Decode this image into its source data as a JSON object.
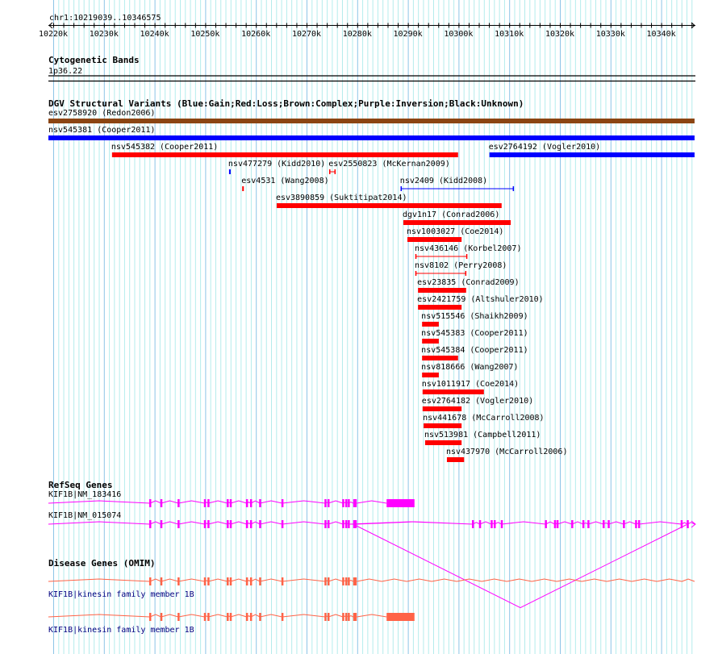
{
  "ruler": {
    "location": "chr1:10219039..10346575",
    "start_kb": 10219.039,
    "end_kb": 10346.575,
    "ticks": [
      "10220k",
      "10230k",
      "10240k",
      "10250k",
      "10260k",
      "10270k",
      "10280k",
      "10290k",
      "10300k",
      "10310k",
      "10320k",
      "10330k",
      "10340k"
    ]
  },
  "cytobands": {
    "title": "Cytogenetic Bands",
    "band": "1p36.22"
  },
  "dgv": {
    "title": "DGV Structural Variants (Blue:Gain;Red:Loss;Brown:Complex;Purple:Inversion;Black:Unknown)",
    "colors": {
      "Gain": "#0000ff",
      "Loss": "#ff0000",
      "Complex": "#8b4513",
      "Inversion": "#800080",
      "Unknown": "#000000"
    },
    "rows": [
      [
        {
          "label": "esv2758920 (Redon2006)",
          "type": "Complex",
          "style": "bar",
          "start": 10219.04,
          "end": 10346.58
        }
      ],
      [
        {
          "label": "nsv545381 (Cooper2011)",
          "type": "Gain",
          "style": "bar",
          "start": 10219.04,
          "end": 10346.58
        }
      ],
      [
        {
          "label": "nsv545382 (Cooper2011)",
          "type": "Loss",
          "style": "bar",
          "start": 10231.6,
          "end": 10299.9
        },
        {
          "label": "esv2764192 (Vogler2010)",
          "type": "Gain",
          "style": "bar",
          "start": 10306.1,
          "end": 10346.58
        }
      ],
      [
        {
          "label": "nsv477279 (Kidd2010)",
          "type": "Gain",
          "style": "bar",
          "start": 10254.7,
          "end": 10255.0
        },
        {
          "label": "esv2550823 (McKernan2009)",
          "type": "Loss",
          "style": "interval",
          "start": 10274.5,
          "end": 10275.7
        }
      ],
      [
        {
          "label": "esv4531 (Wang2008)",
          "type": "Loss",
          "style": "bar",
          "start": 10257.3,
          "end": 10257.6
        },
        {
          "label": "nsv2409 (Kidd2008)",
          "type": "Gain",
          "style": "interval",
          "start": 10288.6,
          "end": 10310.9
        }
      ],
      [
        {
          "label": "esv3890859 (Suktitipat2014)",
          "type": "Loss",
          "style": "bar",
          "start": 10264.1,
          "end": 10308.5
        }
      ],
      [
        {
          "label": "dgv1n17 (Conrad2006)",
          "type": "Loss",
          "style": "bar",
          "start": 10289.1,
          "end": 10310.3
        }
      ],
      [
        {
          "label": "nsv1003027 (Coe2014)",
          "type": "Loss",
          "style": "bar",
          "start": 10289.9,
          "end": 10300.6
        }
      ],
      [
        {
          "label": "nsv436146 (Korbel2007)",
          "type": "Loss",
          "style": "interval",
          "start": 10291.5,
          "end": 10301.7
        }
      ],
      [
        {
          "label": "nsv8102 (Perry2008)",
          "type": "Loss",
          "style": "interval",
          "start": 10291.5,
          "end": 10301.5
        }
      ],
      [
        {
          "label": "esv23835 (Conrad2009)",
          "type": "Loss",
          "style": "bar",
          "start": 10292.0,
          "end": 10301.5
        }
      ],
      [
        {
          "label": "esv2421759 (Altshuler2010)",
          "type": "Loss",
          "style": "bar",
          "start": 10292.0,
          "end": 10300.6
        }
      ],
      [
        {
          "label": "nsv515546 (Shaikh2009)",
          "type": "Loss",
          "style": "bar",
          "start": 10292.8,
          "end": 10296.1
        }
      ],
      [
        {
          "label": "nsv545383 (Cooper2011)",
          "type": "Loss",
          "style": "bar",
          "start": 10292.8,
          "end": 10296.1
        }
      ],
      [
        {
          "label": "nsv545384 (Cooper2011)",
          "type": "Loss",
          "style": "bar",
          "start": 10292.8,
          "end": 10299.9
        }
      ],
      [
        {
          "label": "nsv818666 (Wang2007)",
          "type": "Loss",
          "style": "bar",
          "start": 10292.8,
          "end": 10296.1
        }
      ],
      [
        {
          "label": "nsv1011917 (Coe2014)",
          "type": "Loss",
          "style": "bar",
          "start": 10292.9,
          "end": 10305.0
        }
      ],
      [
        {
          "label": "esv2764182 (Vogler2010)",
          "type": "Loss",
          "style": "bar",
          "start": 10292.9,
          "end": 10300.6
        }
      ],
      [
        {
          "label": "nsv441678 (McCarroll2008)",
          "type": "Loss",
          "style": "bar",
          "start": 10293.1,
          "end": 10300.6
        }
      ],
      [
        {
          "label": "nsv513981 (Campbell2011)",
          "type": "Loss",
          "style": "bar",
          "start": 10293.4,
          "end": 10300.6
        }
      ],
      [
        {
          "label": "nsv437970 (McCarroll2006)",
          "type": "Loss",
          "style": "bar",
          "start": 10297.7,
          "end": 10301.1
        }
      ]
    ]
  },
  "exons_common": [
    10239.1,
    10241.3,
    10244.7,
    10249.9,
    10250.6,
    10254.4,
    10255.0,
    10258.2,
    10259.0,
    10260.8,
    10265.2,
    10273.7,
    10274.3,
    10277.2,
    10277.8,
    10278.3
  ],
  "exons_long": [
    10302.8,
    10304.2,
    10306.5,
    10307.1,
    10308.5,
    10317.2,
    10319.0,
    10319.5,
    10322.4,
    10324.6,
    10325.6,
    10328.6,
    10329.6,
    10332.6,
    10335.0,
    10335.6,
    10344.0,
    10345.2
  ],
  "coding_block": [
    10279.2,
    10279.9
  ],
  "utr_block": [
    10285.8,
    10291.3
  ],
  "refseq": {
    "title": "RefSeq Genes",
    "color": "#ff00ff",
    "genes": [
      {
        "label": "KIF1B|NM_183416",
        "end": 10291.3,
        "utr": true,
        "long": false,
        "arrow": false
      },
      {
        "label": "KIF1B|NM_015074",
        "end": 10346.58,
        "utr": false,
        "long": true,
        "arrow": true
      }
    ]
  },
  "omim": {
    "title": "Disease Genes (OMIM)",
    "color": "#ff6347",
    "genes": [
      {
        "label": "KIF1B|kinesin family member 1B",
        "end": 10346.58,
        "utr": false,
        "long": false,
        "arrow": false
      },
      {
        "label": "KIF1B|kinesin family member 1B",
        "end": 10291.3,
        "utr": true,
        "long": false,
        "arrow": false
      }
    ]
  }
}
